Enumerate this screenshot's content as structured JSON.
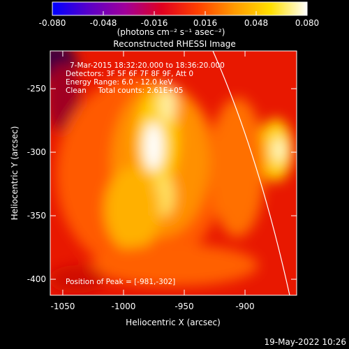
{
  "chart_data": {
    "type": "image",
    "title": "Reconstructed RHESSI Image",
    "x_label": "Heliocentric X (arcsec)",
    "y_label": "Heliocentric Y (arcsec)",
    "xlim": [
      -1060.3,
      -857.5
    ],
    "ylim": [
      -412.6,
      -220.3
    ],
    "xticks": [
      -1050,
      -1000,
      -950,
      -900
    ],
    "yticks": [
      -400,
      -350,
      -300,
      -250
    ],
    "colorbar": {
      "label": "(photons cm⁻² s⁻¹ asec⁻²)",
      "lim": [
        -0.08,
        0.08
      ],
      "ticks": [
        {
          "value": -0.08,
          "label": "-0.080"
        },
        {
          "value": -0.048,
          "label": "-0.048"
        },
        {
          "value": -0.016,
          "label": "-0.016"
        },
        {
          "value": 0.016,
          "label": "0.016"
        },
        {
          "value": 0.048,
          "label": "0.048"
        },
        {
          "value": 0.08,
          "label": "0.080"
        }
      ],
      "colormap": [
        "#0000ff",
        "#5a00c8",
        "#a0009a",
        "#e00020",
        "#ff4000",
        "#ff9a00",
        "#ffe000",
        "#ffffff"
      ]
    },
    "annotations": [
      "7-Mar-2015 18:32:20.000 to 18:36:20.000",
      "Detectors: 3F 5F 6F 7F 8F 9F, Att 0",
      "Energy Range: 6.0 - 12.0 keV",
      "Clean     Total counts: 2.61E+05"
    ],
    "peak_label": "Position of Peak = [-981,-302]",
    "timestamp": "19-May-2022 10:26"
  }
}
